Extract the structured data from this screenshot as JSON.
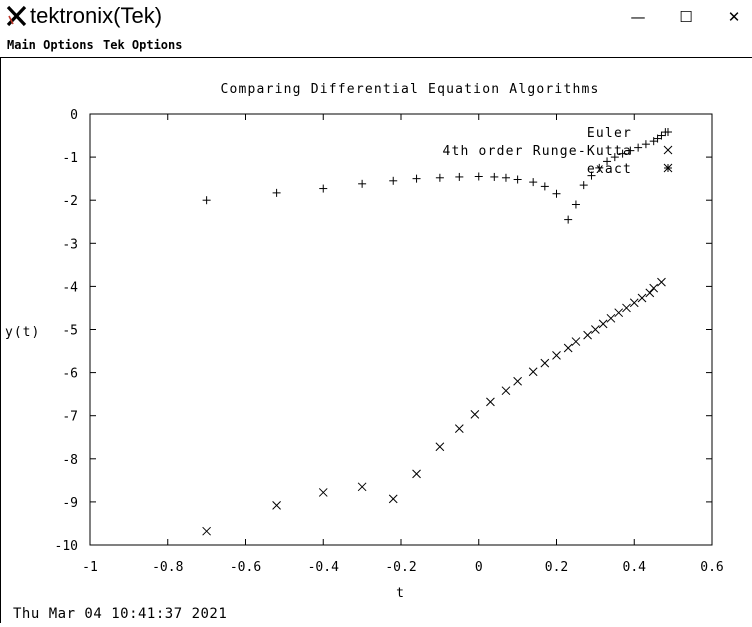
{
  "window": {
    "title": "tektronix(Tek)",
    "icon": "x-logo-icon",
    "minimize_glyph": "—",
    "maximize_glyph": "☐",
    "close_glyph": "✕"
  },
  "menu": {
    "items": [
      "Main Options",
      "Tek Options"
    ]
  },
  "timestamp": "Thu Mar 04 10:41:37 2021",
  "chart_data": {
    "type": "scatter",
    "title": "Comparing Differential Equation Algorithms",
    "xlabel": "t",
    "ylabel": "y(t)",
    "xlim": [
      -1,
      0.6
    ],
    "ylim": [
      -10,
      0
    ],
    "xticks": [
      -1,
      -0.8,
      -0.6,
      -0.4,
      -0.2,
      0,
      0.2,
      0.4,
      0.6
    ],
    "xtick_labels": [
      "-1",
      "-0.8",
      "-0.6",
      "-0.4",
      "-0.2",
      "0",
      "0.2",
      "0.4",
      "0.6"
    ],
    "yticks": [
      0,
      -1,
      -2,
      -3,
      -4,
      -5,
      -6,
      -7,
      -8,
      -9,
      -10
    ],
    "ytick_labels": [
      "0",
      "-1",
      "-2",
      "-3",
      "-4",
      "-5",
      "-6",
      "-7",
      "-8",
      "-9",
      "-10"
    ],
    "legend_position": "top-right",
    "series": [
      {
        "name": "Euler",
        "marker": "+",
        "x": [
          -0.7,
          -0.52,
          -0.4,
          -0.3,
          -0.22,
          -0.16,
          -0.1,
          -0.05,
          0.0,
          0.04,
          0.07,
          0.1,
          0.14,
          0.17,
          0.2,
          0.23,
          0.25,
          0.27,
          0.29,
          0.31,
          0.33,
          0.35,
          0.37,
          0.39,
          0.41,
          0.43,
          0.45,
          0.46,
          0.47,
          0.48
        ],
        "y": [
          -2.0,
          -1.83,
          -1.73,
          -1.62,
          -1.55,
          -1.5,
          -1.48,
          -1.46,
          -1.45,
          -1.46,
          -1.48,
          -1.52,
          -1.58,
          -1.68,
          -1.85,
          -2.45,
          -2.1,
          -1.65,
          -1.43,
          -1.25,
          -1.1,
          -1.0,
          -0.92,
          -0.85,
          -0.78,
          -0.7,
          -0.63,
          -0.57,
          -0.5,
          -0.42
        ]
      },
      {
        "name": "4th order Runge-Kutta",
        "marker": "x",
        "x": [
          -0.7,
          -0.52,
          -0.4,
          -0.3,
          -0.22,
          -0.16,
          -0.1,
          -0.05,
          -0.01,
          0.03,
          0.07,
          0.1,
          0.14,
          0.17,
          0.2,
          0.23,
          0.25,
          0.28,
          0.3,
          0.32,
          0.34,
          0.36,
          0.38,
          0.4,
          0.42,
          0.44,
          0.45,
          0.47
        ],
        "y": [
          -9.68,
          -9.08,
          -8.78,
          -8.65,
          -8.93,
          -8.35,
          -7.72,
          -7.3,
          -6.97,
          -6.68,
          -6.42,
          -6.2,
          -5.98,
          -5.78,
          -5.6,
          -5.43,
          -5.28,
          -5.13,
          -5.0,
          -4.87,
          -4.74,
          -4.61,
          -4.5,
          -4.38,
          -4.27,
          -4.15,
          -4.04,
          -3.9
        ]
      },
      {
        "name": "exact",
        "marker": "*",
        "x": [],
        "y": []
      }
    ]
  }
}
